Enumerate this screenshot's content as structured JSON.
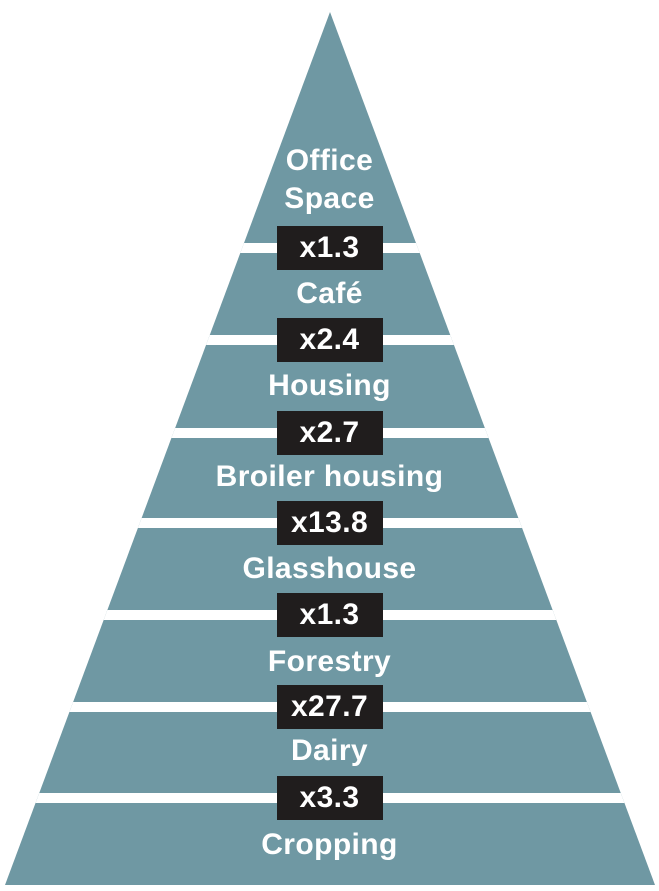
{
  "colors": {
    "background": "#ffffff",
    "pyramid_fill": "#6f98a3",
    "divider": "#ffffff",
    "badge_bg": "#201d1d",
    "label_text": "#ffffff",
    "badge_text": "#ffffff"
  },
  "chart_data": {
    "type": "pyramid",
    "orientation": "apex-top",
    "layers": [
      {
        "label": "Office Space",
        "multiplier_below": "x1.3",
        "multiplier_value": 1.3
      },
      {
        "label": "Café",
        "multiplier_below": "x2.4",
        "multiplier_value": 2.4
      },
      {
        "label": "Housing",
        "multiplier_below": "x2.7",
        "multiplier_value": 2.7
      },
      {
        "label": "Broiler housing",
        "multiplier_below": "x13.8",
        "multiplier_value": 13.8
      },
      {
        "label": "Glasshouse",
        "multiplier_below": "x1.3",
        "multiplier_value": 1.3
      },
      {
        "label": "Forestry",
        "multiplier_below": "x27.7",
        "multiplier_value": 27.7
      },
      {
        "label": "Dairy",
        "multiplier_below": "x3.3",
        "multiplier_value": 3.3
      },
      {
        "label": "Cropping",
        "multiplier_below": null,
        "multiplier_value": null
      }
    ]
  }
}
